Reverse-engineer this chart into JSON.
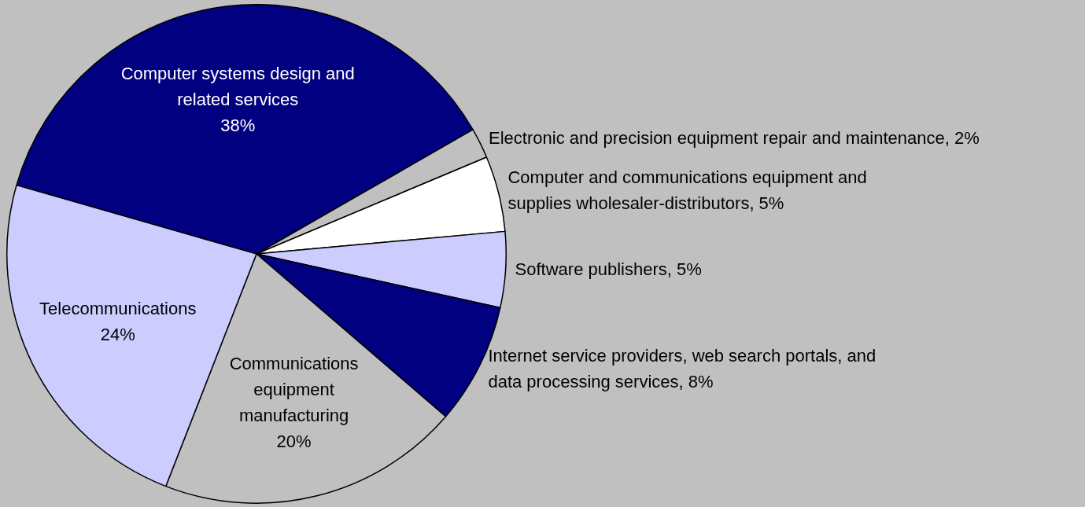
{
  "chart_data": {
    "type": "pie",
    "categories": [
      "Computer systems design and related services",
      "Electronic and precision equipment repair and maintenance",
      "Computer and communications equipment and supplies wholesaler-distributors",
      "Software publishers",
      "Internet service providers, web search portals, and data processing services",
      "Communications equipment manufacturing",
      "Telecommunications"
    ],
    "values": [
      38,
      2,
      5,
      5,
      8,
      20,
      24
    ],
    "value_labels": [
      "38%",
      "2%",
      "5%",
      "5%",
      "8%",
      "20%",
      "24%"
    ],
    "colors": [
      "#000080",
      "#c0c0c0",
      "#ffffff",
      "#ccccff",
      "#000080",
      "#c0c0c0",
      "#ccccff"
    ],
    "legend": false
  }
}
